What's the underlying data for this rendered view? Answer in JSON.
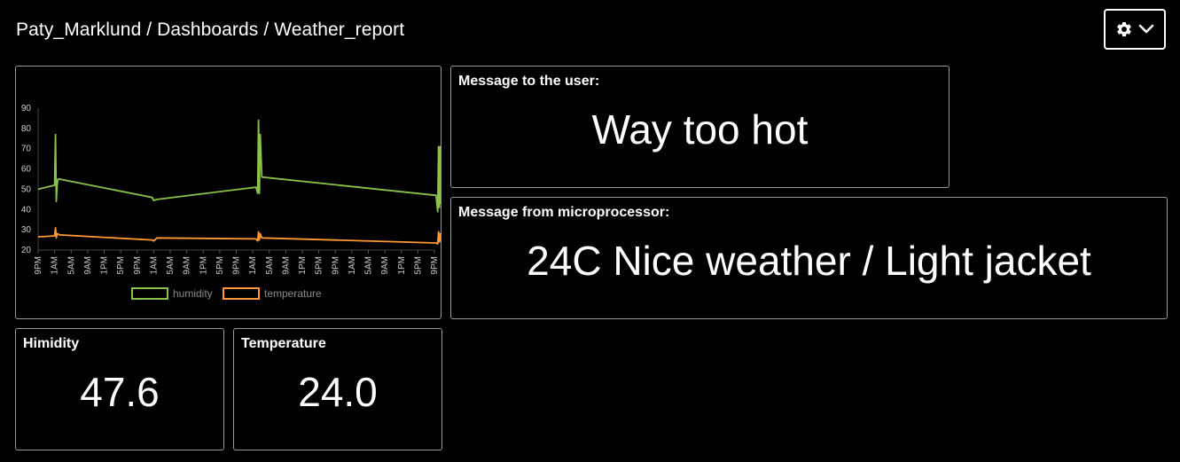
{
  "header": {
    "breadcrumb": "Paty_Marklund / Dashboards / Weather_report",
    "settings_icon": "gear-icon",
    "dropdown_icon": "chevron-down-icon"
  },
  "chart_data": {
    "type": "line",
    "ylim": [
      20,
      90
    ],
    "y_ticks": [
      20,
      30,
      40,
      50,
      60,
      70,
      80,
      90
    ],
    "x_ticks": [
      "9PM",
      "1AM",
      "5AM",
      "9AM",
      "1PM",
      "5PM",
      "9PM",
      "1AM",
      "5AM",
      "9AM",
      "1PM",
      "5PM",
      "9PM",
      "1AM",
      "5AM",
      "9AM",
      "1PM",
      "5PM",
      "9PM",
      "1AM",
      "5AM",
      "9AM",
      "1PM",
      "5PM",
      "9PM"
    ],
    "x": [
      0,
      1.0,
      1.05,
      1.1,
      1.15,
      1.2,
      1.3,
      6.9,
      7.0,
      7.2,
      13.2,
      13.3,
      13.35,
      13.4,
      13.45,
      13.55,
      24.1,
      24.2,
      24.25,
      24.3,
      24.35,
      24.4,
      24.6
    ],
    "series": [
      {
        "name": "humidity",
        "color": "#8bc34a",
        "values": [
          50,
          52,
          77,
          44,
          52,
          55,
          55,
          46,
          44.5,
          45,
          51,
          48,
          84,
          48,
          77,
          56,
          47,
          39,
          71,
          41,
          71,
          43,
          48
        ]
      },
      {
        "name": "temperature",
        "color": "#ff9933",
        "values": [
          26.5,
          27,
          31,
          26,
          28,
          28,
          27.5,
          25,
          24.5,
          26,
          25.5,
          24.5,
          29,
          25,
          28,
          26,
          23.5,
          23,
          29,
          24,
          28,
          24.5,
          23.5
        ]
      }
    ],
    "legend_position": "bottom",
    "grid": false
  },
  "panels": {
    "message_user": {
      "title": "Message to the user:",
      "text": "Way too hot"
    },
    "message_micro": {
      "title": "Message from microprocessor:",
      "text": "24C Nice weather / Light jacket"
    },
    "humidity": {
      "title": "Himidity",
      "value": "47.6"
    },
    "temperature": {
      "title": "Temperature",
      "value": "24.0"
    }
  }
}
